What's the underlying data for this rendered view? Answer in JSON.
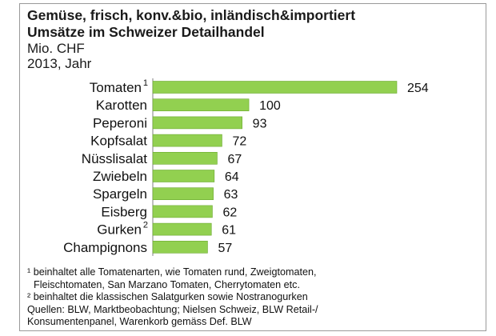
{
  "title": {
    "line1": "Gemüse, frisch, konv.&bio, inländisch&importiert",
    "line2": "Umsätze im Schweizer Detailhandel",
    "unit": "Mio. CHF",
    "period": "2013, Jahr"
  },
  "chart_data": {
    "type": "bar",
    "orientation": "horizontal",
    "title": "Gemüse, frisch, konv.&bio, inländisch&importiert – Umsätze im Schweizer Detailhandel",
    "unit": "Mio. CHF",
    "period": "2013, Jahr",
    "categories": [
      "Tomaten",
      "Karotten",
      "Peperoni",
      "Kopfsalat",
      "Nüsslisalat",
      "Zwiebeln",
      "Spargeln",
      "Eisberg",
      "Gurken",
      "Champignons"
    ],
    "footnote_marks": [
      "1",
      "",
      "",
      "",
      "",
      "",
      "",
      "",
      "2",
      ""
    ],
    "values": [
      254,
      100,
      93,
      72,
      67,
      64,
      63,
      62,
      61,
      57
    ],
    "xlim": [
      0,
      254
    ],
    "grid": false,
    "bar_color": "#92d050",
    "bar_edge_color": "#6aa82f"
  },
  "footnotes": {
    "note1_line1": "¹ beinhaltet alle Tomatenarten, wie Tomaten rund, Zweigtomaten,",
    "note1_line2": "Fleischtomaten, San Marzano Tomaten, Cherrytomaten etc.",
    "note2": "² beinhaltet die klassischen Salatgurken sowie Nostranogurken",
    "source_line1": "Quellen: BLW, Marktbeobachtung; Nielsen Schweiz, BLW Retail-/",
    "source_line2": "Konsumentenpanel, Warenkorb gemäss Def. BLW"
  }
}
